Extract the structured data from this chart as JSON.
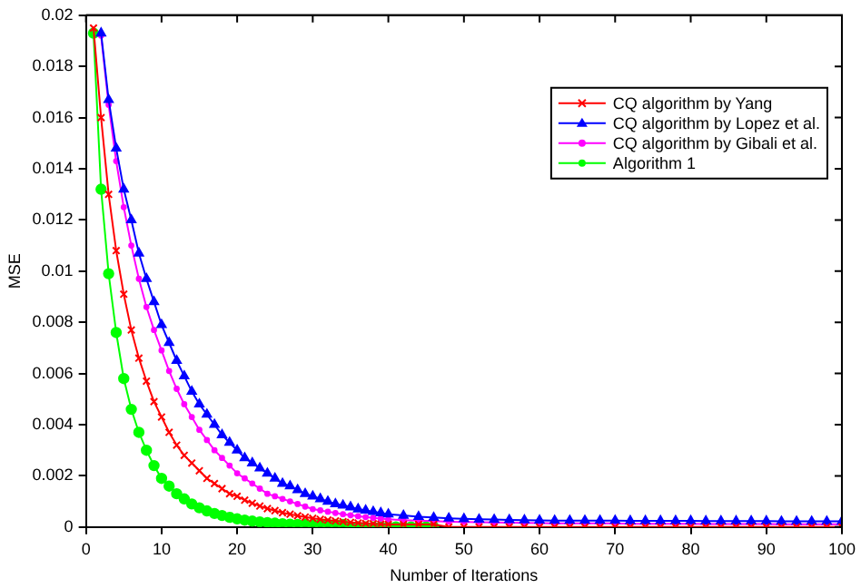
{
  "chart_data": {
    "type": "line",
    "xlabel": "Number of Iterations",
    "ylabel": "MSE",
    "xlim": [
      0,
      100
    ],
    "xticks": [
      0,
      10,
      20,
      30,
      40,
      50,
      60,
      70,
      80,
      90,
      100
    ],
    "ylim": [
      0,
      0.02
    ],
    "yticks": [
      0,
      0.002,
      0.004,
      0.006,
      0.008,
      0.01,
      0.012,
      0.014,
      0.016,
      0.018,
      0.02
    ],
    "grid": false,
    "legend": "top right",
    "series": [
      {
        "name": "CQ algorithm by Yang",
        "color": "#ff0000",
        "marker": "cross",
        "x": [
          1,
          2,
          3,
          4,
          5,
          6,
          7,
          8,
          9,
          10,
          11,
          12,
          13,
          14,
          15,
          16,
          17,
          18,
          19,
          20,
          21,
          22,
          23,
          24,
          25,
          26,
          27,
          28,
          29,
          30,
          31,
          32,
          33,
          34,
          35,
          36,
          37,
          38,
          39,
          40,
          42,
          44,
          46,
          48,
          50,
          52,
          54,
          56,
          58,
          60,
          62,
          64,
          66,
          68,
          70,
          72,
          74,
          76,
          78,
          80,
          82,
          84,
          86,
          88,
          90,
          92,
          94,
          96,
          98,
          100
        ],
        "values": [
          0.0195,
          0.016,
          0.013,
          0.0108,
          0.0091,
          0.0077,
          0.0066,
          0.0057,
          0.0049,
          0.0043,
          0.0037,
          0.0032,
          0.0028,
          0.0025,
          0.0022,
          0.0019,
          0.0017,
          0.0015,
          0.0013,
          0.0012,
          0.00105,
          0.00093,
          0.00082,
          0.00072,
          0.00064,
          0.00056,
          0.0005,
          0.00044,
          0.00039,
          0.00034,
          0.0003,
          0.00027,
          0.00024,
          0.00021,
          0.00018,
          0.00016,
          0.00014,
          0.00013,
          0.00011,
          0.0001,
          0.0001,
          0.0001,
          0.0001,
          0,
          0,
          0,
          0,
          0,
          0,
          0,
          0,
          0,
          0,
          0,
          0,
          0,
          0,
          0,
          0,
          0,
          0,
          0,
          0,
          0,
          0,
          0,
          0,
          0,
          0,
          0
        ]
      },
      {
        "name": "CQ algorithm by Lopez et al.",
        "color": "#0000ff",
        "marker": "triangle",
        "x": [
          2,
          3,
          4,
          5,
          6,
          7,
          8,
          9,
          10,
          11,
          12,
          13,
          14,
          15,
          16,
          17,
          18,
          19,
          20,
          21,
          22,
          23,
          24,
          25,
          26,
          27,
          28,
          29,
          30,
          31,
          32,
          33,
          34,
          35,
          36,
          37,
          38,
          39,
          40,
          42,
          44,
          46,
          48,
          50,
          52,
          54,
          56,
          58,
          60,
          62,
          64,
          66,
          68,
          70,
          72,
          74,
          76,
          78,
          80,
          82,
          84,
          86,
          88,
          90,
          92,
          94,
          96,
          98,
          100
        ],
        "values": [
          0.0193,
          0.0167,
          0.0148,
          0.0132,
          0.012,
          0.0107,
          0.0097,
          0.0088,
          0.0079,
          0.0072,
          0.0065,
          0.0059,
          0.0053,
          0.0048,
          0.0044,
          0.004,
          0.0036,
          0.0033,
          0.003,
          0.0027,
          0.0025,
          0.0023,
          0.0021,
          0.0019,
          0.0017,
          0.0016,
          0.00145,
          0.0013,
          0.0012,
          0.0011,
          0.001,
          0.0009,
          0.00085,
          0.00078,
          0.0007,
          0.00065,
          0.0006,
          0.00055,
          0.0005,
          0.00045,
          0.0004,
          0.00037,
          0.00034,
          0.00032,
          0.0003,
          0.00029,
          0.00028,
          0.00027,
          0.00026,
          0.00025,
          0.00025,
          0.00025,
          0.00025,
          0.00025,
          0.00024,
          0.00024,
          0.00024,
          0.00024,
          0.00024,
          0.00023,
          0.00023,
          0.00023,
          0.00023,
          0.00023,
          0.00022,
          0.00022,
          0.00022,
          0.00022,
          0.00022
        ]
      },
      {
        "name": "CQ algorithm by Gibali et al.",
        "color": "#ff00ff",
        "marker": "circle",
        "x": [
          2,
          3,
          4,
          5,
          6,
          7,
          8,
          9,
          10,
          11,
          12,
          13,
          14,
          15,
          16,
          17,
          18,
          19,
          20,
          21,
          22,
          23,
          24,
          25,
          26,
          27,
          28,
          29,
          30,
          31,
          32,
          33,
          34,
          35,
          36,
          37,
          38,
          39,
          40,
          42,
          44,
          46,
          48,
          50,
          52,
          54,
          56,
          58,
          60,
          62,
          64,
          66,
          68,
          70,
          72,
          74,
          76,
          78,
          80,
          82,
          84,
          86,
          88,
          90,
          92,
          94,
          96,
          98,
          100
        ],
        "values": [
          0.0192,
          0.0165,
          0.0143,
          0.0125,
          0.011,
          0.0097,
          0.0086,
          0.0077,
          0.0069,
          0.0061,
          0.0054,
          0.0048,
          0.0043,
          0.0038,
          0.0034,
          0.003,
          0.0027,
          0.0024,
          0.0021,
          0.0019,
          0.0017,
          0.0015,
          0.0013,
          0.0012,
          0.0011,
          0.001,
          0.0009,
          0.0008,
          0.0007,
          0.00065,
          0.0006,
          0.00055,
          0.0005,
          0.00046,
          0.00042,
          0.00039,
          0.00036,
          0.00033,
          0.0003,
          0.00027,
          0.00025,
          0.00023,
          0.00021,
          0.0002,
          0.00019,
          0.00018,
          0.00017,
          0.00016,
          0.00015,
          0.00014,
          0.00014,
          0.00014,
          0.00014,
          0.00014,
          0.00013,
          0.00013,
          0.00013,
          0.00013,
          0.00013,
          0.00012,
          0.00012,
          0.00012,
          0.00012,
          0.00012,
          0.00011,
          0.00011,
          0.00011,
          0.00011,
          0.00011
        ]
      },
      {
        "name": "Algorithm 1",
        "color": "#00ff00",
        "marker": "circle",
        "x": [
          1,
          2,
          3,
          4,
          5,
          6,
          7,
          8,
          9,
          10,
          11,
          12,
          13,
          14,
          15,
          16,
          17,
          18,
          19,
          20,
          21,
          22,
          23,
          24,
          25,
          26,
          27,
          28,
          29,
          30,
          31,
          32,
          33,
          34,
          35,
          36,
          37,
          38,
          39,
          40,
          41,
          42,
          43,
          44,
          45,
          46
        ],
        "values": [
          0.0193,
          0.0132,
          0.0099,
          0.0076,
          0.0058,
          0.0046,
          0.0037,
          0.003,
          0.0024,
          0.0019,
          0.0016,
          0.0013,
          0.0011,
          0.0009,
          0.00075,
          0.00063,
          0.00053,
          0.00045,
          0.00038,
          0.00032,
          0.00027,
          0.00023,
          0.0002,
          0.00017,
          0.00015,
          0.00013,
          0.00011,
          0.0001,
          0.0001,
          0.0001,
          0.0001,
          0.0001,
          0.0001,
          0.0001,
          0,
          0,
          0,
          0,
          0,
          0,
          0,
          0,
          0,
          0,
          0,
          0
        ]
      }
    ]
  }
}
